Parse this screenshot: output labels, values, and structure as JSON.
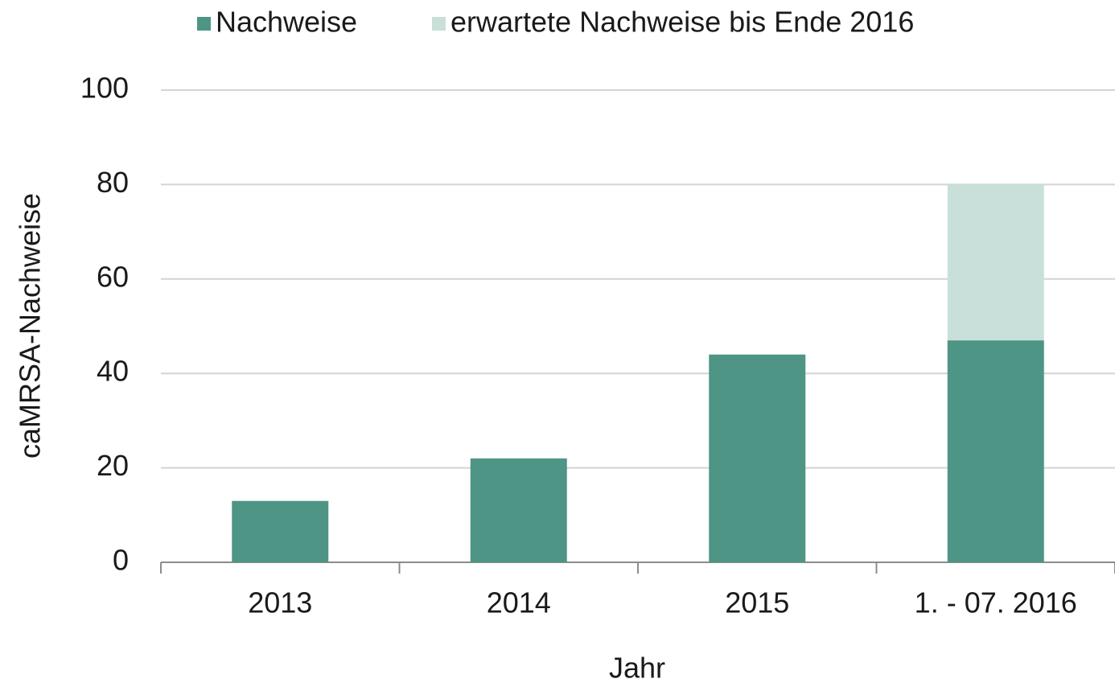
{
  "chart_data": {
    "type": "stacked_bar",
    "categories": [
      "2013",
      "2014",
      "2015",
      "1. - 07. 2016"
    ],
    "series": [
      {
        "name": "Nachweise",
        "color": "#4e9585",
        "values": [
          13,
          22,
          44,
          47
        ]
      },
      {
        "name": "erwartete Nachweise bis Ende 2016",
        "color": "#c8e0d9",
        "values": [
          null,
          null,
          null,
          33
        ]
      }
    ],
    "ylim": [
      0,
      100
    ],
    "yticks": [
      0,
      20,
      40,
      60,
      80,
      100
    ],
    "ylabel": "caMRSA-Nachweise",
    "xlabel": "Jahr",
    "grid": true,
    "legend": "top"
  }
}
